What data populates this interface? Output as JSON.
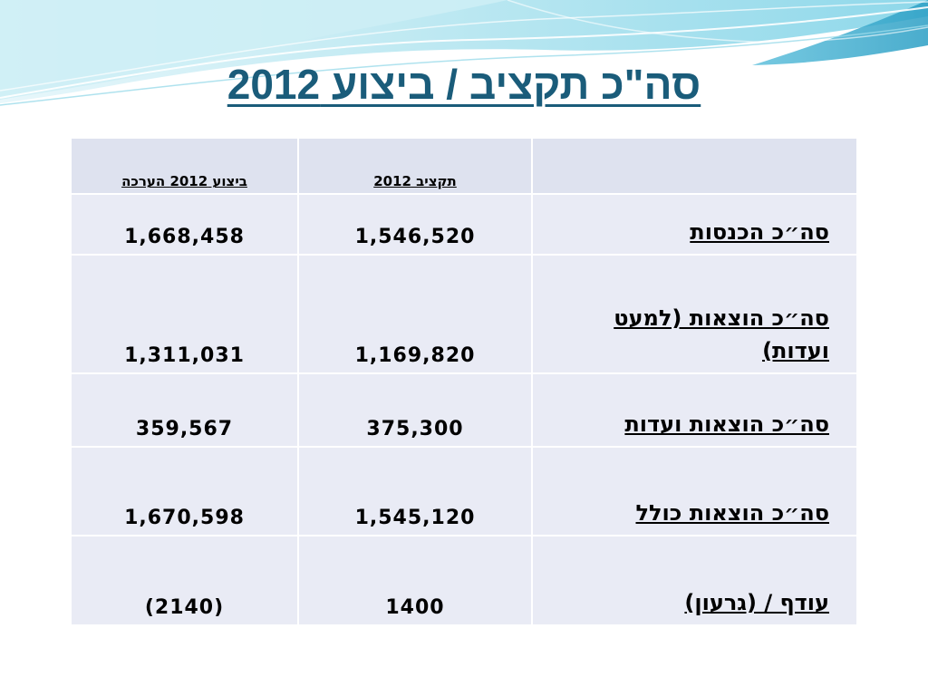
{
  "slide": {
    "title": "סה\"כ תקציב / ביצוע 2012"
  },
  "table": {
    "headers": {
      "execution": "ביצוע 2012 הערכה",
      "budget": "תקציב 2012",
      "label": ""
    },
    "rows": [
      {
        "label": "סה״כ הכנסות",
        "budget": "1,546,520",
        "execution": "1,668,458"
      },
      {
        "label": "סה״כ הוצאות (למעט ועדות)",
        "budget": "1,169,820",
        "execution": "1,311,031"
      },
      {
        "label": "סה״כ הוצאות ועדות",
        "budget": "375,300",
        "execution": "359,567"
      },
      {
        "label": "סה״כ הוצאות כולל",
        "budget": "1,545,120",
        "execution": "1,670,598"
      },
      {
        "label": "עודף / (גרעון)",
        "budget": "1400",
        "execution": "(2140)"
      }
    ]
  },
  "colors": {
    "title": "#1a5c7a",
    "cell_background": "#e9ebf5",
    "wave_light": "#bfe9f2",
    "wave_mid": "#6fcbe0",
    "wave_dark": "#2a9ec4"
  }
}
